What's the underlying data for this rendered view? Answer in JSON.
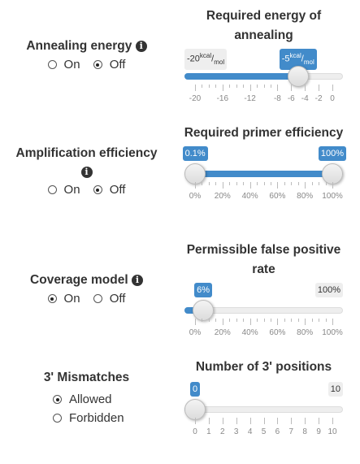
{
  "options": [
    {
      "title": "Annealing energy",
      "has_info": true,
      "radios": [
        {
          "label": "On",
          "checked": false
        },
        {
          "label": "Off",
          "checked": true
        }
      ],
      "slider": {
        "title": "Required energy of annealing",
        "min": -20,
        "max": 0,
        "value": -5,
        "min_label": "-20",
        "max_label": "",
        "value_label": "-5",
        "unit": {
          "top": "kcal",
          "bottom": "mol"
        },
        "double": false,
        "ticks": [
          "-20",
          "-16",
          "-12",
          "-8",
          "-6",
          "-4",
          "-2",
          "0"
        ],
        "tick_values": [
          -20,
          -16,
          -12,
          -8,
          -6,
          -4,
          -2,
          0
        ],
        "bar_from_min": true
      }
    },
    {
      "title": "Amplification efficiency",
      "has_info": true,
      "radios": [
        {
          "label": "On",
          "checked": false
        },
        {
          "label": "Off",
          "checked": true
        }
      ],
      "slider": {
        "title": "Required primer efficiency",
        "min": 0,
        "max": 100,
        "value_low": 0.1,
        "value_high": 100,
        "low_label": "0.1%",
        "high_label": "100%",
        "double": true,
        "ticks": [
          "0%",
          "20%",
          "40%",
          "60%",
          "80%",
          "100%"
        ],
        "tick_values": [
          0,
          20,
          40,
          60,
          80,
          100
        ]
      }
    },
    {
      "title": "Coverage model",
      "has_info": true,
      "radios": [
        {
          "label": "On",
          "checked": true
        },
        {
          "label": "Off",
          "checked": false
        }
      ],
      "slider": {
        "title": "Permissible false positive rate",
        "min": 0,
        "max": 100,
        "value": 6,
        "value_label": "6%",
        "max_label": "100%",
        "double": false,
        "ticks": [
          "0%",
          "20%",
          "40%",
          "60%",
          "80%",
          "100%"
        ],
        "tick_values": [
          0,
          20,
          40,
          60,
          80,
          100
        ],
        "bar_from_min": true
      }
    },
    {
      "title": "3' Mismatches",
      "has_info": false,
      "vertical_radios": true,
      "radios": [
        {
          "label": "Allowed",
          "checked": true
        },
        {
          "label": "Forbidden",
          "checked": false
        }
      ],
      "slider": {
        "title": "Number of 3' positions",
        "min": 0,
        "max": 10,
        "value": 0,
        "value_label": "0",
        "max_label": "10",
        "double": false,
        "ticks": [
          "0",
          "1",
          "2",
          "3",
          "4",
          "5",
          "6",
          "7",
          "8",
          "9",
          "10"
        ],
        "tick_values": [
          0,
          1,
          2,
          3,
          4,
          5,
          6,
          7,
          8,
          9,
          10
        ],
        "bar_from_min": true
      }
    }
  ],
  "colors": {
    "accent": "#428bca",
    "text": "#333333",
    "track": "#eeeeee"
  },
  "icons": {
    "info": "info-circle-icon"
  }
}
